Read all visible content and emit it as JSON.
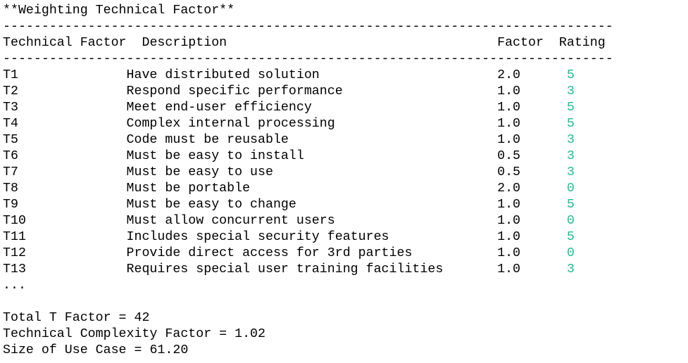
{
  "title": "**Weighting Technical Factor**",
  "separator": "-------------------------------------------------------------------------------",
  "table": {
    "header": [
      "Technical Factor",
      "Description",
      "Factor",
      "Rating"
    ],
    "rows": [
      [
        "T1",
        "Have distributed solution",
        "2.0",
        5
      ],
      [
        "T2",
        "Respond specific performance",
        "1.0",
        3
      ],
      [
        "T3",
        "Meet end-user efficiency",
        "1.0",
        5
      ],
      [
        "T4",
        "Complex internal processing",
        "1.0",
        5
      ],
      [
        "T5",
        "Code must be reusable",
        "1.0",
        3
      ],
      [
        "T6",
        "Must be easy to install",
        "0.5",
        3
      ],
      [
        "T7",
        "Must be easy to use",
        "0.5",
        3
      ],
      [
        "T8",
        "Must be portable",
        "2.0",
        0
      ],
      [
        "T9",
        "Must be easy to change",
        "1.0",
        5
      ],
      [
        "T10",
        "Must allow concurrent users",
        "1.0",
        0
      ],
      [
        "T11",
        "Includes special security features",
        "1.0",
        5
      ],
      [
        "T12",
        "Provide direct access for 3rd parties",
        "1.0",
        0
      ],
      [
        "T13",
        "Requires special user training facilities",
        "1.0",
        3
      ]
    ],
    "rating_color": "#1fbf8f"
  },
  "ellipsis": "...",
  "summary": [
    "Total T Factor = 42",
    "Technical Complexity Factor = 1.02",
    "Size of Use Case = 61.20"
  ]
}
